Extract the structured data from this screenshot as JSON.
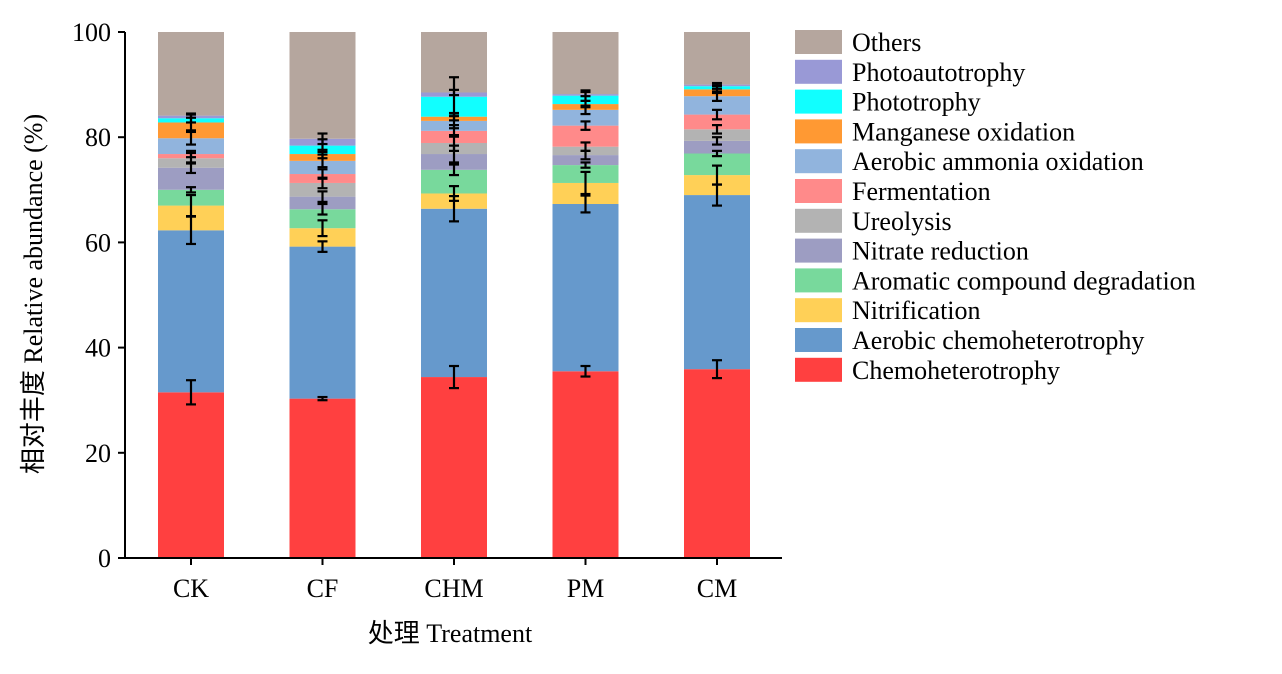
{
  "chart_data": {
    "type": "bar",
    "stacked": true,
    "xlabel": "处理 Treatment",
    "ylabel": "相对丰度 Relative abundance (%)",
    "ylim": [
      0,
      100
    ],
    "yticks": [
      0,
      20,
      40,
      60,
      80,
      100
    ],
    "grid": false,
    "legend_position": "right",
    "categories": [
      "CK",
      "CF",
      "CHM",
      "PM",
      "CM"
    ],
    "series": [
      {
        "name": "Chemoheterotrophy",
        "color": "#ff4040",
        "values": [
          31.5,
          30.3,
          34.4,
          35.5,
          35.9
        ],
        "errors": [
          2.3,
          0.3,
          2.1,
          1.0,
          1.7
        ]
      },
      {
        "name": "Aerobic chemoheterotrophy",
        "color": "#6699cc",
        "values": [
          30.8,
          28.9,
          32.0,
          31.8,
          33.1
        ],
        "errors": [
          2.6,
          1.0,
          2.4,
          1.6,
          2.0
        ]
      },
      {
        "name": "Nitrification",
        "color": "#ffd057",
        "values": [
          4.7,
          3.5,
          2.9,
          4.0,
          3.8
        ],
        "errors": [
          2.0,
          1.5,
          1.4,
          2.1,
          1.8
        ]
      },
      {
        "name": "Aromatic compound degradation",
        "color": "#78d99c",
        "values": [
          3.0,
          3.6,
          4.5,
          3.4,
          4.1
        ],
        "errors": [
          0.5,
          1.0,
          1.0,
          0.5,
          0.5
        ]
      },
      {
        "name": "Nitrate reduction",
        "color": "#9d9dc2",
        "values": [
          4.2,
          2.4,
          3.0,
          1.9,
          2.4
        ],
        "errors": [
          1.0,
          1.0,
          1.6,
          0.8,
          0.7
        ]
      },
      {
        "name": "Ureolysis",
        "color": "#b3b3b3",
        "values": [
          1.8,
          2.6,
          2.1,
          1.6,
          2.2
        ],
        "errors": [
          1.0,
          1.0,
          1.5,
          0.8,
          0.8
        ]
      },
      {
        "name": "Fermentation",
        "color": "#ff8a8a",
        "values": [
          0.8,
          1.7,
          2.3,
          4.0,
          2.8
        ],
        "errors": [
          0.6,
          0.9,
          1.1,
          0.8,
          0.9
        ]
      },
      {
        "name": "Aerobic ammonia oxidation",
        "color": "#91b4dd",
        "values": [
          3.0,
          2.5,
          1.9,
          3.0,
          3.5
        ],
        "errors": [
          1.2,
          1.2,
          1.4,
          0.8,
          0.9
        ]
      },
      {
        "name": "Manganese oxidation",
        "color": "#ff9933",
        "values": [
          3.0,
          1.3,
          0.8,
          1.1,
          1.3
        ],
        "errors": [
          1.5,
          0.8,
          0.7,
          0.6,
          0.7
        ]
      },
      {
        "name": "Phototrophy",
        "color": "#11ffff",
        "values": [
          0.8,
          1.6,
          3.8,
          1.6,
          0.6
        ],
        "errors": [
          0.8,
          1.2,
          3.7,
          1.0,
          0.5
        ]
      },
      {
        "name": "Photoautotrophy",
        "color": "#9999d6",
        "values": [
          0.5,
          1.3,
          0.8,
          0.3,
          0.3
        ],
        "errors": [
          0.4,
          1.0,
          0.5,
          0.4,
          0.3
        ]
      },
      {
        "name": "Others",
        "color": "#b5a69e",
        "values": [
          15.9,
          20.3,
          11.5,
          11.8,
          10.0
        ],
        "errors": [
          0,
          0,
          0,
          0,
          0
        ]
      }
    ]
  }
}
